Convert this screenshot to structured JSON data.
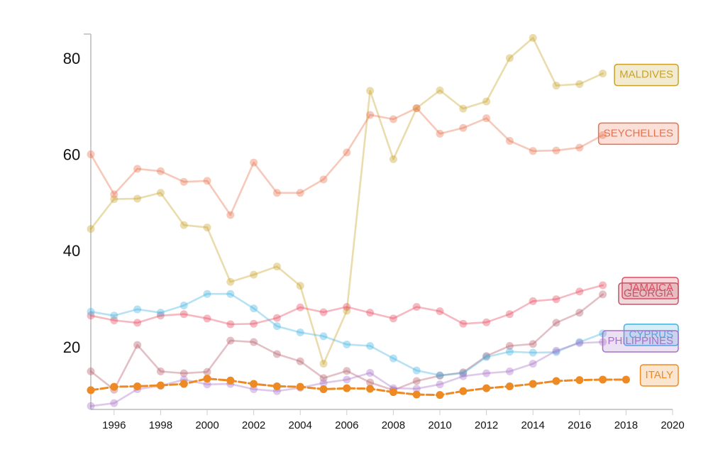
{
  "chart_data": {
    "type": "line",
    "x": [
      1995,
      1996,
      1997,
      1998,
      1999,
      2000,
      2001,
      2002,
      2003,
      2004,
      2005,
      2006,
      2007,
      2008,
      2009,
      2010,
      2011,
      2012,
      2013,
      2014,
      2015,
      2016,
      2017,
      2018
    ],
    "xlim": [
      1995,
      2020
    ],
    "ylim": [
      7,
      85
    ],
    "x_ticks": [
      1996,
      1998,
      2000,
      2002,
      2004,
      2006,
      2008,
      2010,
      2012,
      2014,
      2016,
      2018,
      2020
    ],
    "y_ticks": [
      20,
      40,
      60,
      80
    ],
    "title": "",
    "xlabel": "",
    "ylabel": "",
    "grid": false,
    "legend": "inline labels at right end of each line",
    "series": [
      {
        "name": "MALDIVES",
        "label_year": 2017,
        "color": "#c9a227",
        "values": [
          44.5,
          50.7,
          50.8,
          52,
          45.3,
          44.8,
          33.5,
          35,
          36.7,
          32.7,
          16.5,
          27.5,
          73.2,
          59,
          69.6,
          73.3,
          69.5,
          71,
          80,
          84.2,
          74.3,
          74.6,
          76.8,
          null
        ]
      },
      {
        "name": "SEYCHELLES",
        "label_year": 2017,
        "color": "#e8704c",
        "values": [
          60,
          51.7,
          57,
          56.5,
          54.3,
          54.5,
          47.4,
          58.3,
          52,
          52,
          54.8,
          60.4,
          68.2,
          67.3,
          69.6,
          64.3,
          65.5,
          67.5,
          62.8,
          60.7,
          60.8,
          61.4,
          64,
          null
        ]
      },
      {
        "name": "JAMAICA",
        "label_year": 2017,
        "color": "#e8475c",
        "values": [
          26.5,
          25.5,
          25,
          26.5,
          26.8,
          25.9,
          24.7,
          24.8,
          26,
          28.2,
          27.2,
          28.3,
          27.1,
          25.9,
          28.3,
          27.4,
          24.8,
          25.1,
          26.8,
          29.5,
          29.9,
          31.5,
          32.8,
          null
        ]
      },
      {
        "name": "GEORGIA",
        "label_year": 2017,
        "color": "#b55a6a",
        "values": [
          14.9,
          11.1,
          20.4,
          14.9,
          14.5,
          14.8,
          21.3,
          21,
          18.5,
          17,
          13.5,
          15,
          12.6,
          11,
          12.9,
          14,
          14.7,
          18.1,
          20.2,
          20.6,
          25,
          27.1,
          30.9,
          null
        ]
      },
      {
        "name": "CYPRUS",
        "label_year": 2017,
        "color": "#3fb3e3",
        "values": [
          27.3,
          26.5,
          27.8,
          27.1,
          28.6,
          31,
          31,
          28,
          24.3,
          23,
          22.2,
          20.5,
          20.2,
          17.6,
          15.1,
          14.1,
          14.5,
          17.9,
          19,
          18.8,
          18.9,
          21,
          22.8,
          null
        ]
      },
      {
        "name": "PHILIPPINES",
        "label_year": 2017,
        "color": "#a770c9",
        "values": [
          7.7,
          8.3,
          11.2,
          11.9,
          13.2,
          12.2,
          12.3,
          11.2,
          10.8,
          11.5,
          12.5,
          13.2,
          14.6,
          11.4,
          11.3,
          12.2,
          13.9,
          14.5,
          14.9,
          16.5,
          19.2,
          20.8,
          21,
          null
        ]
      },
      {
        "name": "ITALY",
        "label_year": 2017,
        "color": "#ee8a24",
        "values": [
          11,
          11.7,
          11.8,
          12,
          12.3,
          13.4,
          13,
          12.3,
          11.8,
          11.7,
          11.2,
          11.4,
          11.3,
          10.6,
          10.1,
          10,
          10.8,
          11.4,
          11.8,
          12.3,
          12.9,
          13.1,
          13.2,
          13.2
        ]
      }
    ]
  }
}
